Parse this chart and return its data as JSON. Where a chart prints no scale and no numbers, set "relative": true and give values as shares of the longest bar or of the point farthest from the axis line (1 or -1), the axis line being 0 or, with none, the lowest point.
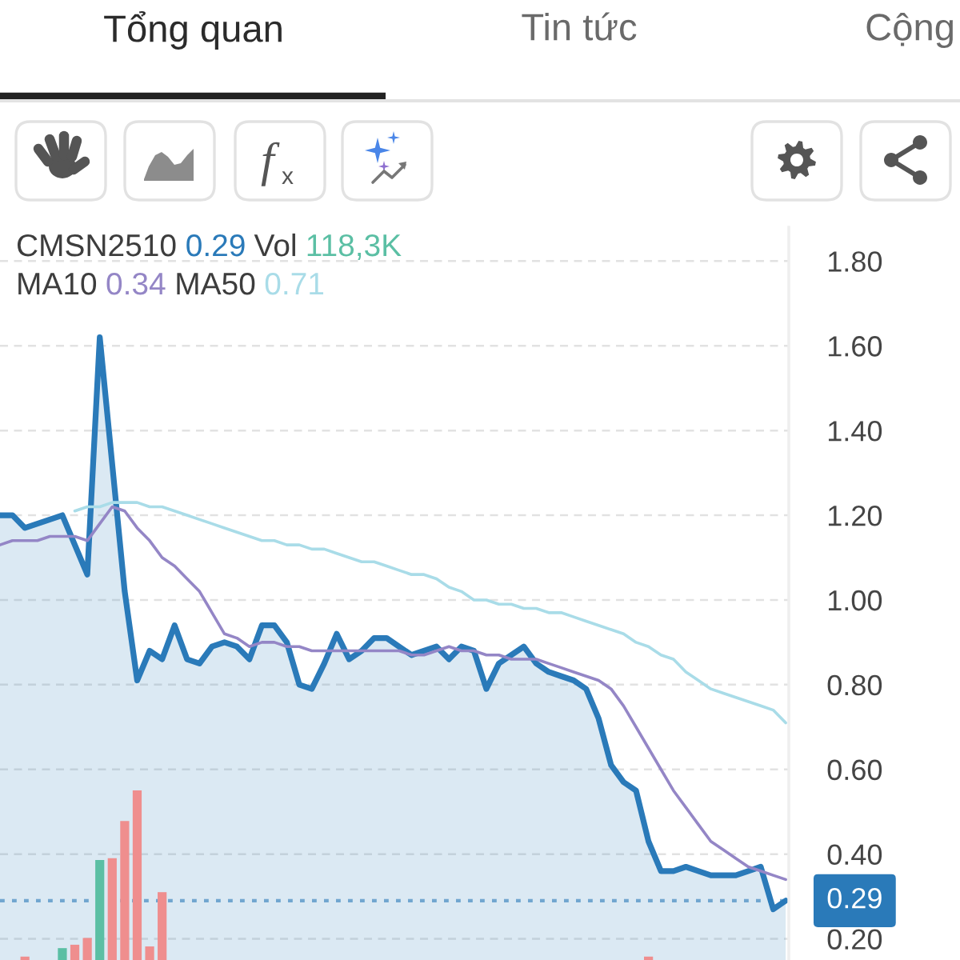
{
  "chart_data": [
    {
      "type": "other",
      "annotations": [
        "Tổng quan",
        "Tin tức",
        "Cộng"
      ]
    },
    {
      "type": "area",
      "categories": [
        null,
        null,
        null,
        null,
        null,
        null,
        null,
        null,
        null,
        null,
        null,
        null,
        null,
        null,
        null,
        null,
        null,
        null,
        null,
        null,
        null,
        null,
        null,
        null,
        null,
        null,
        null,
        null,
        null,
        null,
        null,
        null,
        null,
        null,
        null,
        null,
        null,
        null,
        null,
        null,
        null,
        null,
        null,
        null,
        null,
        null,
        null,
        null,
        null,
        null,
        null,
        null,
        null,
        null,
        null,
        null,
        null,
        null,
        null,
        null,
        null,
        null,
        null,
        null
      ],
      "series": [
        {
          "type": "area",
          "color": "#2a7ab9",
          "values": [
            1.2,
            1.2,
            1.17,
            1.18,
            1.19,
            1.2,
            1.13,
            1.06,
            1.62,
            1.32,
            1.02,
            0.81,
            0.88,
            0.86,
            0.94,
            0.86,
            0.85,
            0.89,
            0.9,
            0.89,
            0.86,
            0.94,
            0.94,
            0.9,
            0.8,
            0.79,
            0.85,
            0.92,
            0.86,
            0.88,
            0.91,
            0.91,
            0.89,
            0.87,
            0.88,
            0.89,
            0.86,
            0.89,
            0.88,
            0.79,
            0.85,
            0.87,
            0.89,
            0.85,
            0.83,
            0.82,
            0.81,
            0.79,
            0.72,
            0.61,
            0.57,
            0.55,
            0.43,
            0.36,
            0.36,
            0.37,
            0.36,
            0.35,
            0.35,
            0.35,
            0.36,
            0.37,
            0.27,
            0.29
          ]
        },
        {
          "type": "line",
          "color": "#9486c6",
          "values": [
            1.13,
            1.14,
            1.14,
            1.14,
            1.15,
            1.15,
            1.15,
            1.14,
            1.18,
            1.22,
            1.21,
            1.17,
            1.14,
            1.1,
            1.08,
            1.05,
            1.02,
            0.97,
            0.92,
            0.91,
            0.89,
            0.9,
            0.9,
            0.89,
            0.89,
            0.88,
            0.88,
            0.88,
            0.88,
            0.88,
            0.88,
            0.88,
            0.88,
            0.87,
            0.87,
            0.88,
            0.89,
            0.88,
            0.88,
            0.87,
            0.87,
            0.86,
            0.86,
            0.86,
            0.85,
            0.84,
            0.83,
            0.82,
            0.81,
            0.79,
            0.75,
            0.7,
            0.65,
            0.6,
            0.55,
            0.51,
            0.47,
            0.43,
            0.41,
            0.39,
            0.37,
            0.36,
            0.35,
            0.34
          ]
        },
        {
          "type": "line",
          "color": "#a9dce8",
          "values": [
            null,
            null,
            null,
            null,
            null,
            null,
            1.21,
            1.22,
            1.22,
            1.23,
            1.23,
            1.23,
            1.22,
            1.22,
            1.21,
            1.2,
            1.19,
            1.18,
            1.17,
            1.16,
            1.15,
            1.14,
            1.14,
            1.13,
            1.13,
            1.12,
            1.12,
            1.11,
            1.1,
            1.09,
            1.09,
            1.08,
            1.07,
            1.06,
            1.06,
            1.05,
            1.03,
            1.02,
            1.0,
            1.0,
            0.99,
            0.99,
            0.98,
            0.98,
            0.97,
            0.97,
            0.96,
            0.95,
            0.94,
            0.93,
            0.92,
            0.9,
            0.89,
            0.87,
            0.86,
            0.83,
            0.81,
            0.79,
            0.78,
            0.77,
            0.76,
            0.75,
            0.74,
            0.71
          ]
        }
      ],
      "ylim": [
        0.15,
        1.88
      ],
      "yticks": [
        {
          "value": 0.2,
          "label": "0.20"
        },
        {
          "value": 0.4,
          "label": "0.40"
        },
        {
          "value": 0.6,
          "label": "0.60"
        },
        {
          "value": 0.8,
          "label": "0.80"
        },
        {
          "value": 1.0,
          "label": "1.00"
        },
        {
          "value": 1.2,
          "label": "1.20"
        },
        {
          "value": 1.4,
          "label": "1.40"
        },
        {
          "value": 1.6,
          "label": "1.60"
        },
        {
          "value": 1.8,
          "label": "1.80"
        }
      ],
      "tick_labels": "y",
      "grid": "y",
      "annotations": [
        "CMSN2510",
        "0.29",
        "MA10",
        "0.34",
        "MA50",
        "0.71"
      ],
      "ref_lines": [
        {
          "axis": "y",
          "value": 0.29,
          "label": "0.29",
          "color": "#2a7ab9",
          "line_style": "dotted"
        }
      ]
    },
    {
      "type": "bar",
      "relative": true,
      "categories": [
        null,
        null,
        null,
        null,
        null,
        null,
        null,
        null,
        null,
        null,
        null,
        null,
        null,
        null,
        null,
        null,
        null,
        null,
        null,
        null,
        null,
        null,
        null,
        null,
        null,
        null,
        null,
        null,
        null,
        null,
        null,
        null,
        null,
        null,
        null,
        null,
        null,
        null,
        null,
        null,
        null,
        null,
        null,
        null,
        null,
        null,
        null,
        null,
        null,
        null,
        null,
        null,
        null,
        null,
        null,
        null,
        null,
        null,
        null,
        null,
        null,
        null,
        null,
        null
      ],
      "series": [
        {
          "color": "#5bbfa4",
          "colors": [
            null,
            null,
            "#ef8e8e",
            null,
            null,
            "#5bbfa4",
            "#ef8e8e",
            "#ef8e8e",
            "#5bbfa4",
            "#ef8e8e",
            "#ef8e8e",
            "#ef8e8e",
            "#ef8e8e",
            "#ef8e8e",
            null,
            null,
            null,
            null,
            null,
            null,
            null,
            null,
            null,
            null,
            null,
            null,
            null,
            null,
            null,
            null,
            null,
            null,
            null,
            null,
            null,
            null,
            null,
            null,
            null,
            null,
            null,
            null,
            null,
            null,
            null,
            null,
            null,
            null,
            null,
            null,
            null,
            null,
            "#ef8e8e",
            null,
            null,
            null,
            null,
            null,
            null,
            null,
            null,
            null,
            null,
            null
          ],
          "values": [
            null,
            null,
            0.02,
            null,
            null,
            0.07,
            0.09,
            0.13,
            0.59,
            0.6,
            0.82,
            1,
            0.08,
            0.4,
            null,
            null,
            null,
            null,
            null,
            null,
            null,
            null,
            null,
            null,
            null,
            null,
            null,
            null,
            null,
            null,
            null,
            null,
            null,
            null,
            null,
            null,
            null,
            null,
            null,
            null,
            null,
            null,
            null,
            null,
            null,
            null,
            null,
            null,
            null,
            null,
            null,
            null,
            0.02,
            null,
            null,
            null,
            null,
            null,
            null,
            null,
            null,
            null,
            null,
            null
          ]
        }
      ],
      "tick_labels": false,
      "annotations": [
        "Vol",
        "118,3K"
      ]
    }
  ]
}
